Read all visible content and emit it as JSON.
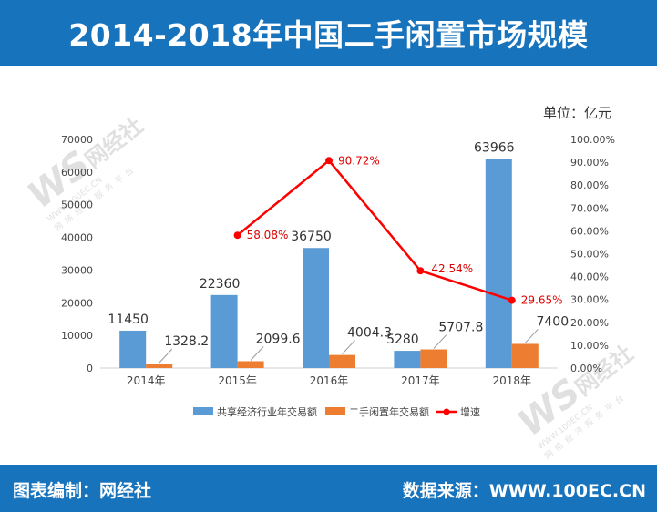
{
  "header": {
    "title": "2014-2018年中国二手闲置市场规模"
  },
  "unit_label": "单位：亿元",
  "footer": {
    "editor": "图表编制：网经社",
    "source": "数据来源：WWW.100EC.CN"
  },
  "watermark": {
    "logo": "WS",
    "name": "网经社",
    "url": "WWW.100EC.CN",
    "sub": "网络经济服务平台"
  },
  "chart_data": {
    "type": "bar",
    "categories": [
      "2014年",
      "2015年",
      "2016年",
      "2017年",
      "2018年"
    ],
    "series": [
      {
        "name": "共享经济行业年交易额",
        "type": "bar",
        "axis": "left",
        "color": "#5b9bd5",
        "values": [
          11450,
          22360,
          36750,
          5280,
          63966
        ],
        "labels": [
          "11450",
          "22360",
          "36750",
          "5280",
          "63966"
        ]
      },
      {
        "name": "二手闲置年交易额",
        "type": "bar",
        "axis": "left",
        "color": "#ed7d31",
        "values": [
          1328.2,
          2099.6,
          4004.3,
          5707.8,
          7400
        ],
        "labels": [
          "1328.2",
          "2099.6",
          "4004.3",
          "5707.8",
          "7400"
        ]
      },
      {
        "name": "增速",
        "type": "line",
        "axis": "right",
        "color": "#ff0000",
        "values": [
          null,
          58.08,
          90.72,
          42.54,
          29.65
        ],
        "labels": [
          "",
          "58.08%",
          "90.72%",
          "42.54%",
          "29.65%"
        ]
      }
    ],
    "y_left": {
      "min": 0,
      "max": 70000,
      "ticks": [
        "0",
        "10000",
        "20000",
        "30000",
        "40000",
        "50000",
        "60000",
        "70000"
      ]
    },
    "y_right": {
      "min": 0,
      "max": 100,
      "ticks": [
        "0.00%",
        "10.00%",
        "20.00%",
        "30.00%",
        "40.00%",
        "50.00%",
        "60.00%",
        "70.00%",
        "80.00%",
        "90.00%",
        "100.00%"
      ]
    },
    "legend_position": "bottom",
    "grid": false
  }
}
